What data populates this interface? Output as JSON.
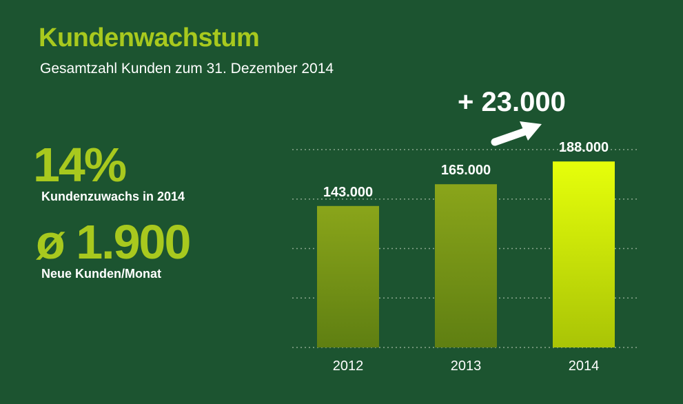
{
  "header": {
    "title": "Kundenwachstum",
    "subtitle": "Gesamtzahl Kunden zum 31. Dezember 2014"
  },
  "kpis": [
    {
      "value": "14%",
      "label": "Kundenzuwachs in 2014"
    },
    {
      "value": "ø 1.900",
      "label": "Neue Kunden/Monat"
    }
  ],
  "annotation": {
    "growth_label": "+ 23.000"
  },
  "colors": {
    "background": "#1c5430",
    "accent": "#a8c91e",
    "bar_old_top": "#8aa51a",
    "bar_old_bottom": "#5f7f12",
    "bar_highlight_top": "#e6ff0a",
    "bar_highlight_bottom": "#a9c406",
    "gridline": "#8ca88f"
  },
  "chart_data": {
    "type": "bar",
    "categories": [
      "2012",
      "2013",
      "2014"
    ],
    "values": [
      143000,
      165000,
      188000
    ],
    "value_labels": [
      "143.000",
      "165.000",
      "188.000"
    ],
    "highlight_index": 2,
    "title": "",
    "xlabel": "",
    "ylabel": "",
    "ylim": [
      0,
      200000
    ],
    "grid": true,
    "legend": "none",
    "annotations": [
      {
        "text": "+ 23.000",
        "from_category": "2013",
        "to_category": "2014",
        "arrow": true
      }
    ]
  }
}
